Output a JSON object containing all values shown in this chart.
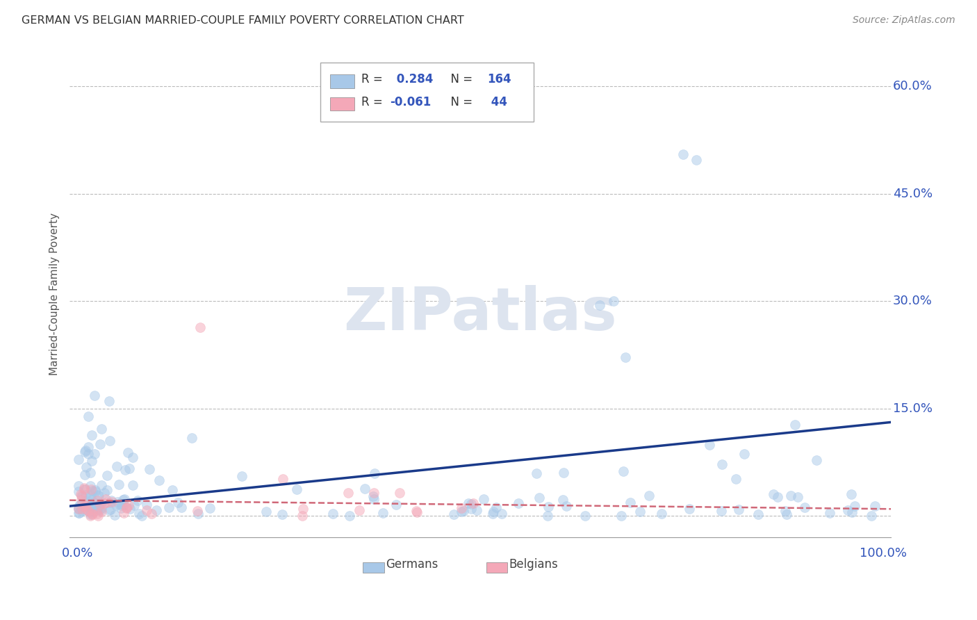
{
  "title": "GERMAN VS BELGIAN MARRIED-COUPLE FAMILY POVERTY CORRELATION CHART",
  "source": "Source: ZipAtlas.com",
  "ylabel": "Married-Couple Family Poverty",
  "r_german": 0.284,
  "n_german": 164,
  "r_belgian": -0.061,
  "n_belgian": 44,
  "german_color": "#a8c8e8",
  "belgian_color": "#f4a8b8",
  "german_line_color": "#1a3a8a",
  "belgian_line_color": "#d06878",
  "background_color": "#ffffff",
  "grid_color": "#bbbbbb",
  "title_color": "#333333",
  "axis_label_color": "#3355bb",
  "watermark_color": "#dde4ef",
  "watermark": "ZIPatlas",
  "xlim": [
    -0.01,
    1.01
  ],
  "ylim": [
    -0.03,
    0.65
  ],
  "xticks": [
    0.0,
    0.25,
    0.5,
    0.75,
    1.0
  ],
  "xticklabels": [
    "0.0%",
    "",
    "",
    "",
    "100.0%"
  ],
  "yticks": [
    0.0,
    0.15,
    0.3,
    0.45,
    0.6
  ],
  "yticklabels": [
    "",
    "15.0%",
    "30.0%",
    "45.0%",
    "60.0%"
  ],
  "marker_size": 100,
  "marker_alpha": 0.5,
  "figsize": [
    14.06,
    8.92
  ]
}
